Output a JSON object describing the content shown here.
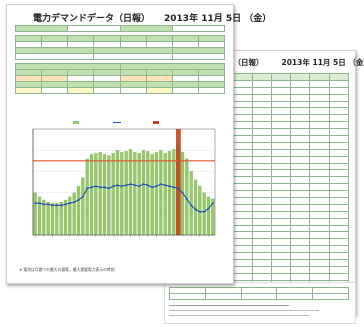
{
  "front": {
    "title": "電力デマンドデータ（日報）",
    "date": "2013年 11月 5日 （金）",
    "footnote": "※ 電流は月間での最大の値等。最大需要電力表示の時刻",
    "chart_data": {
      "type": "bar",
      "bar_color": "#98c86a",
      "line_color": "#1e4fb0",
      "limit_color": "#e1552a",
      "highlight_color": "#c0461d",
      "ylim": [
        0,
        100
      ],
      "limit": 70,
      "highlight_index": 33,
      "values": [
        40,
        36,
        33,
        31,
        30,
        30,
        31,
        33,
        36,
        40,
        46,
        54,
        72,
        76,
        77,
        78,
        76,
        75,
        77,
        80,
        78,
        79,
        81,
        78,
        77,
        80,
        79,
        76,
        78,
        80,
        77,
        79,
        81,
        84,
        78,
        72,
        60,
        52,
        46,
        40,
        36,
        34
      ],
      "line": [
        30,
        30,
        29,
        29,
        28,
        28,
        28,
        29,
        30,
        31,
        33,
        36,
        44,
        45,
        46,
        45,
        45,
        44,
        46,
        47,
        46,
        47,
        48,
        47,
        46,
        48,
        47,
        45,
        46,
        48,
        47,
        46,
        45,
        44,
        40,
        34,
        28,
        24,
        22,
        22,
        25,
        30
      ]
    }
  },
  "back": {
    "title": "データ（日報）",
    "date": "2013年 11月 5日 （金）"
  }
}
